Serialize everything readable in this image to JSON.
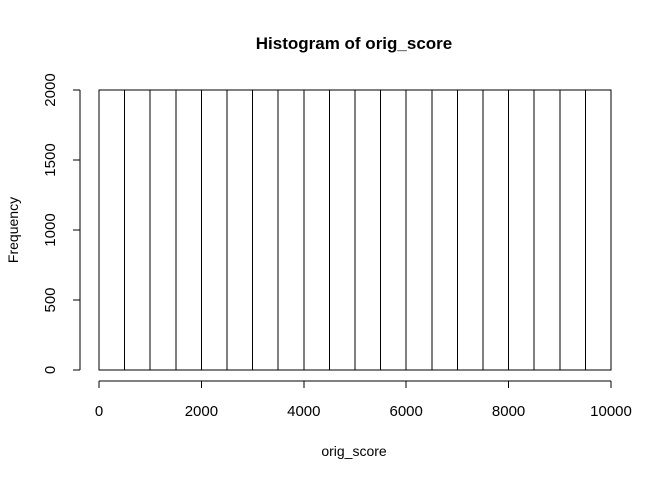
{
  "chart_data": {
    "type": "bar",
    "title": "Histogram of orig_score",
    "xlabel": "orig_score",
    "ylabel": "Frequency",
    "bins": [
      {
        "start": 0,
        "end": 500,
        "count": 2000
      },
      {
        "start": 500,
        "end": 1000,
        "count": 2000
      },
      {
        "start": 1000,
        "end": 1500,
        "count": 2000
      },
      {
        "start": 1500,
        "end": 2000,
        "count": 2000
      },
      {
        "start": 2000,
        "end": 2500,
        "count": 2000
      },
      {
        "start": 2500,
        "end": 3000,
        "count": 2000
      },
      {
        "start": 3000,
        "end": 3500,
        "count": 2000
      },
      {
        "start": 3500,
        "end": 4000,
        "count": 2000
      },
      {
        "start": 4000,
        "end": 4500,
        "count": 2000
      },
      {
        "start": 4500,
        "end": 5000,
        "count": 2000
      },
      {
        "start": 5000,
        "end": 5500,
        "count": 2000
      },
      {
        "start": 5500,
        "end": 6000,
        "count": 2000
      },
      {
        "start": 6000,
        "end": 6500,
        "count": 2000
      },
      {
        "start": 6500,
        "end": 7000,
        "count": 2000
      },
      {
        "start": 7000,
        "end": 7500,
        "count": 2000
      },
      {
        "start": 7500,
        "end": 8000,
        "count": 2000
      },
      {
        "start": 8000,
        "end": 8500,
        "count": 2000
      },
      {
        "start": 8500,
        "end": 9000,
        "count": 2000
      },
      {
        "start": 9000,
        "end": 9500,
        "count": 2000
      },
      {
        "start": 9500,
        "end": 10000,
        "count": 2000
      }
    ],
    "xlim": [
      0,
      10000
    ],
    "ylim": [
      0,
      2000
    ],
    "x_ticks": [
      0,
      2000,
      4000,
      6000,
      8000,
      10000
    ],
    "y_ticks": [
      0,
      500,
      1000,
      1500,
      2000
    ],
    "grid": false,
    "bar_fill": "#ffffff",
    "bar_stroke": "#000000"
  }
}
